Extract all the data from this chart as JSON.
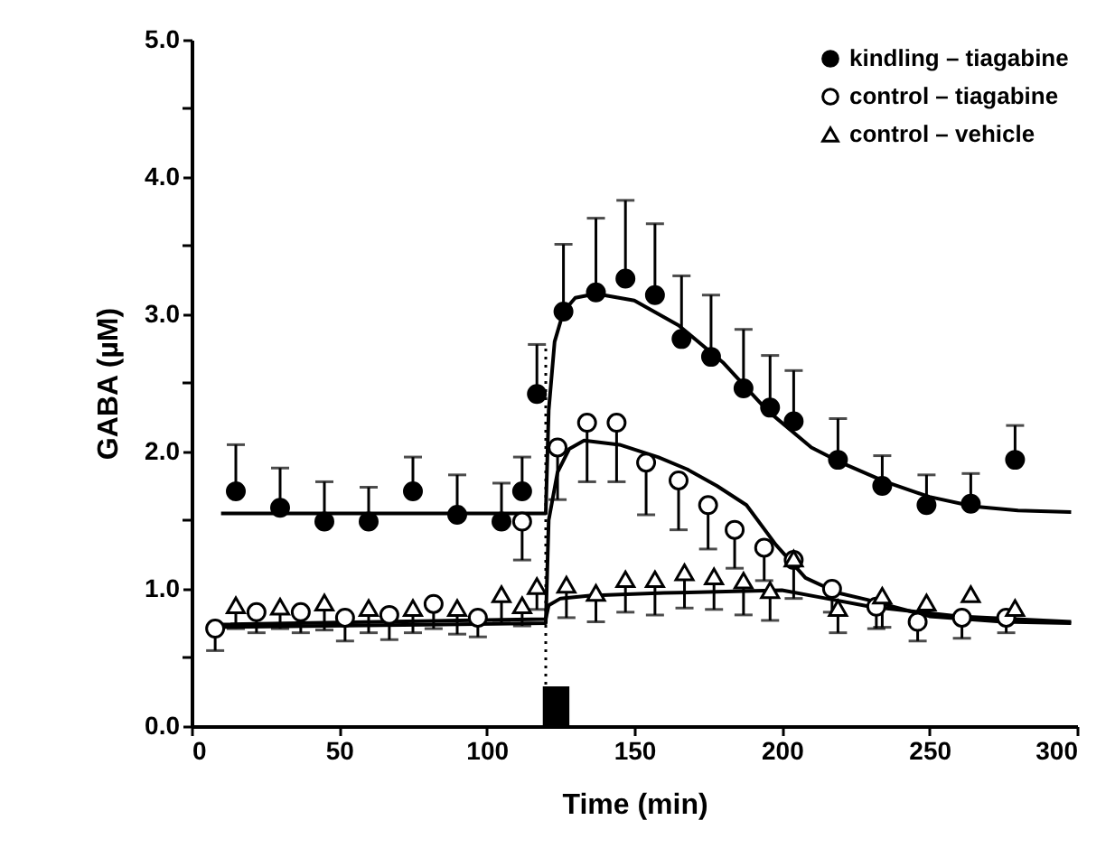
{
  "chart_data": {
    "type": "scatter",
    "xlabel": "Time (min)",
    "ylabel": "GABA (µM)",
    "xlim": [
      0,
      300
    ],
    "xticks": [
      0,
      50,
      100,
      150,
      200,
      250,
      300
    ],
    "ylim": [
      0,
      5
    ],
    "yticks": [
      {
        "value": 0,
        "label": "0.0"
      },
      {
        "value": 0.5,
        "label": null
      },
      {
        "value": 1,
        "label": "1.0"
      },
      {
        "value": 1.5,
        "label": null
      },
      {
        "value": 2,
        "label": "2.0"
      },
      {
        "value": 2.5,
        "label": null
      },
      {
        "value": 3,
        "label": "3.0"
      },
      {
        "value": 3.5,
        "label": null
      },
      {
        "value": 4,
        "label": "4.0"
      },
      {
        "value": 4.5,
        "label": null
      },
      {
        "value": 5,
        "label": "5.0"
      }
    ],
    "legend": "top right",
    "ref_lines": [
      {
        "axis": "x",
        "value": 120,
        "line_style": "dotted",
        "color": "#000000"
      }
    ],
    "bands": [
      {
        "axis": "x",
        "from": 119,
        "to": 128,
        "color": "#000000"
      }
    ],
    "series": [
      {
        "name": "kindling – tiagabine",
        "color": "#000000",
        "marker": "circle",
        "x": [
          15,
          30,
          45,
          60,
          75,
          90,
          105,
          112,
          117,
          126,
          137,
          147,
          157,
          166,
          176,
          187,
          196,
          204,
          219,
          234,
          249,
          264,
          279
        ],
        "values": [
          1.71,
          1.59,
          1.49,
          1.49,
          1.71,
          1.54,
          1.49,
          1.71,
          2.42,
          3.02,
          3.16,
          3.26,
          3.14,
          2.82,
          2.69,
          2.46,
          2.32,
          2.22,
          1.94,
          1.75,
          1.61,
          1.62,
          1.94
        ],
        "errors": [
          [
            1.71,
            2.05
          ],
          [
            1.59,
            1.88
          ],
          [
            1.49,
            1.78
          ],
          [
            1.49,
            1.74
          ],
          [
            1.71,
            1.96
          ],
          [
            1.54,
            1.83
          ],
          [
            1.49,
            1.77
          ],
          [
            1.71,
            1.96
          ],
          [
            2.42,
            2.78
          ],
          [
            3.02,
            3.51
          ],
          [
            3.16,
            3.7
          ],
          [
            3.26,
            3.83
          ],
          [
            3.14,
            3.66
          ],
          [
            2.82,
            3.28
          ],
          [
            2.69,
            3.14
          ],
          [
            2.46,
            2.89
          ],
          [
            2.32,
            2.7
          ],
          [
            2.22,
            2.59
          ],
          [
            1.94,
            2.24
          ],
          [
            1.75,
            1.97
          ],
          [
            1.61,
            1.83
          ],
          [
            1.62,
            1.84
          ],
          [
            1.94,
            2.19
          ]
        ]
      },
      {
        "name": "control – tiagabine",
        "color": "#ffffff",
        "marker": "circle",
        "x": [
          8,
          22,
          37,
          52,
          67,
          82,
          97,
          112,
          124,
          134,
          144,
          154,
          165,
          175,
          184,
          194,
          204,
          217,
          232,
          246,
          261,
          276
        ],
        "values": [
          0.71,
          0.83,
          0.83,
          0.79,
          0.81,
          0.89,
          0.79,
          1.49,
          2.03,
          2.21,
          2.21,
          1.92,
          1.79,
          1.61,
          1.43,
          1.3,
          1.21,
          1.0,
          0.87,
          0.76,
          0.79,
          0.79
        ],
        "errors": [
          [
            0.55,
            0.71
          ],
          [
            0.68,
            0.83
          ],
          [
            0.68,
            0.83
          ],
          [
            0.62,
            0.79
          ],
          [
            0.63,
            0.81
          ],
          [
            0.71,
            0.89
          ],
          [
            0.65,
            0.79
          ],
          [
            1.21,
            1.49
          ],
          [
            1.65,
            2.03
          ],
          [
            1.78,
            2.21
          ],
          [
            1.78,
            2.21
          ],
          [
            1.54,
            1.92
          ],
          [
            1.43,
            1.79
          ],
          [
            1.29,
            1.61
          ],
          [
            1.15,
            1.43
          ],
          [
            1.06,
            1.3
          ],
          [
            0.93,
            1.21
          ],
          [
            0.83,
            1.0
          ],
          [
            0.71,
            0.87
          ],
          [
            0.62,
            0.76
          ],
          [
            0.64,
            0.79
          ],
          [
            0.68,
            0.79
          ]
        ]
      },
      {
        "name": "control – vehicle",
        "color": "#ffffff",
        "marker": "triangle",
        "x": [
          15,
          30,
          45,
          60,
          75,
          90,
          105,
          112,
          117,
          127,
          137,
          147,
          157,
          167,
          177,
          187,
          196,
          204,
          219,
          234,
          249,
          264,
          279
        ],
        "values": [
          0.88,
          0.87,
          0.9,
          0.86,
          0.86,
          0.86,
          0.96,
          0.88,
          1.02,
          1.03,
          0.97,
          1.07,
          1.07,
          1.12,
          1.09,
          1.06,
          0.99,
          1.22,
          0.86,
          0.95,
          0.9,
          0.96,
          0.86
        ],
        "errors": [
          [
            0.71,
            0.88
          ],
          [
            0.71,
            0.87
          ],
          [
            0.7,
            0.9
          ],
          [
            0.68,
            0.86
          ],
          [
            0.68,
            0.86
          ],
          [
            0.67,
            0.86
          ],
          [
            0.75,
            0.96
          ],
          [
            0.73,
            0.88
          ],
          [
            0.85,
            1.02
          ],
          [
            0.79,
            1.03
          ],
          [
            0.76,
            0.97
          ],
          [
            0.83,
            1.07
          ],
          [
            0.81,
            1.07
          ],
          [
            0.86,
            1.12
          ],
          [
            0.85,
            1.09
          ],
          [
            0.81,
            1.06
          ],
          [
            0.77,
            0.99
          ],
          null,
          [
            0.68,
            0.86
          ],
          [
            0.72,
            0.95
          ],
          null,
          null,
          null
        ]
      },
      {
        "type": "line",
        "color": "#000000",
        "x": [
          10,
          120,
          121,
          123,
          126,
          130,
          137,
          150,
          165,
          180,
          195,
          210,
          220,
          235,
          250,
          265,
          280,
          298
        ],
        "values": [
          1.55,
          1.55,
          2.3,
          2.8,
          3.02,
          3.12,
          3.15,
          3.1,
          2.92,
          2.65,
          2.3,
          2.03,
          1.92,
          1.78,
          1.67,
          1.6,
          1.57,
          1.56
        ]
      },
      {
        "type": "line",
        "color": "#000000",
        "x": [
          5,
          120,
          121,
          124,
          128,
          133,
          145,
          158,
          168,
          178,
          188,
          198,
          208,
          219,
          229,
          250,
          275,
          298
        ],
        "values": [
          0.72,
          0.75,
          1.5,
          1.85,
          2.02,
          2.08,
          2.05,
          1.96,
          1.87,
          1.75,
          1.61,
          1.32,
          1.08,
          0.97,
          0.92,
          0.8,
          0.76,
          0.75
        ]
      },
      {
        "type": "line",
        "color": "#000000",
        "x": [
          10,
          120,
          121,
          125,
          135,
          160,
          200,
          215,
          230,
          260,
          298
        ],
        "values": [
          0.74,
          0.78,
          0.88,
          0.93,
          0.95,
          0.97,
          0.99,
          0.93,
          0.87,
          0.8,
          0.76
        ]
      }
    ]
  }
}
